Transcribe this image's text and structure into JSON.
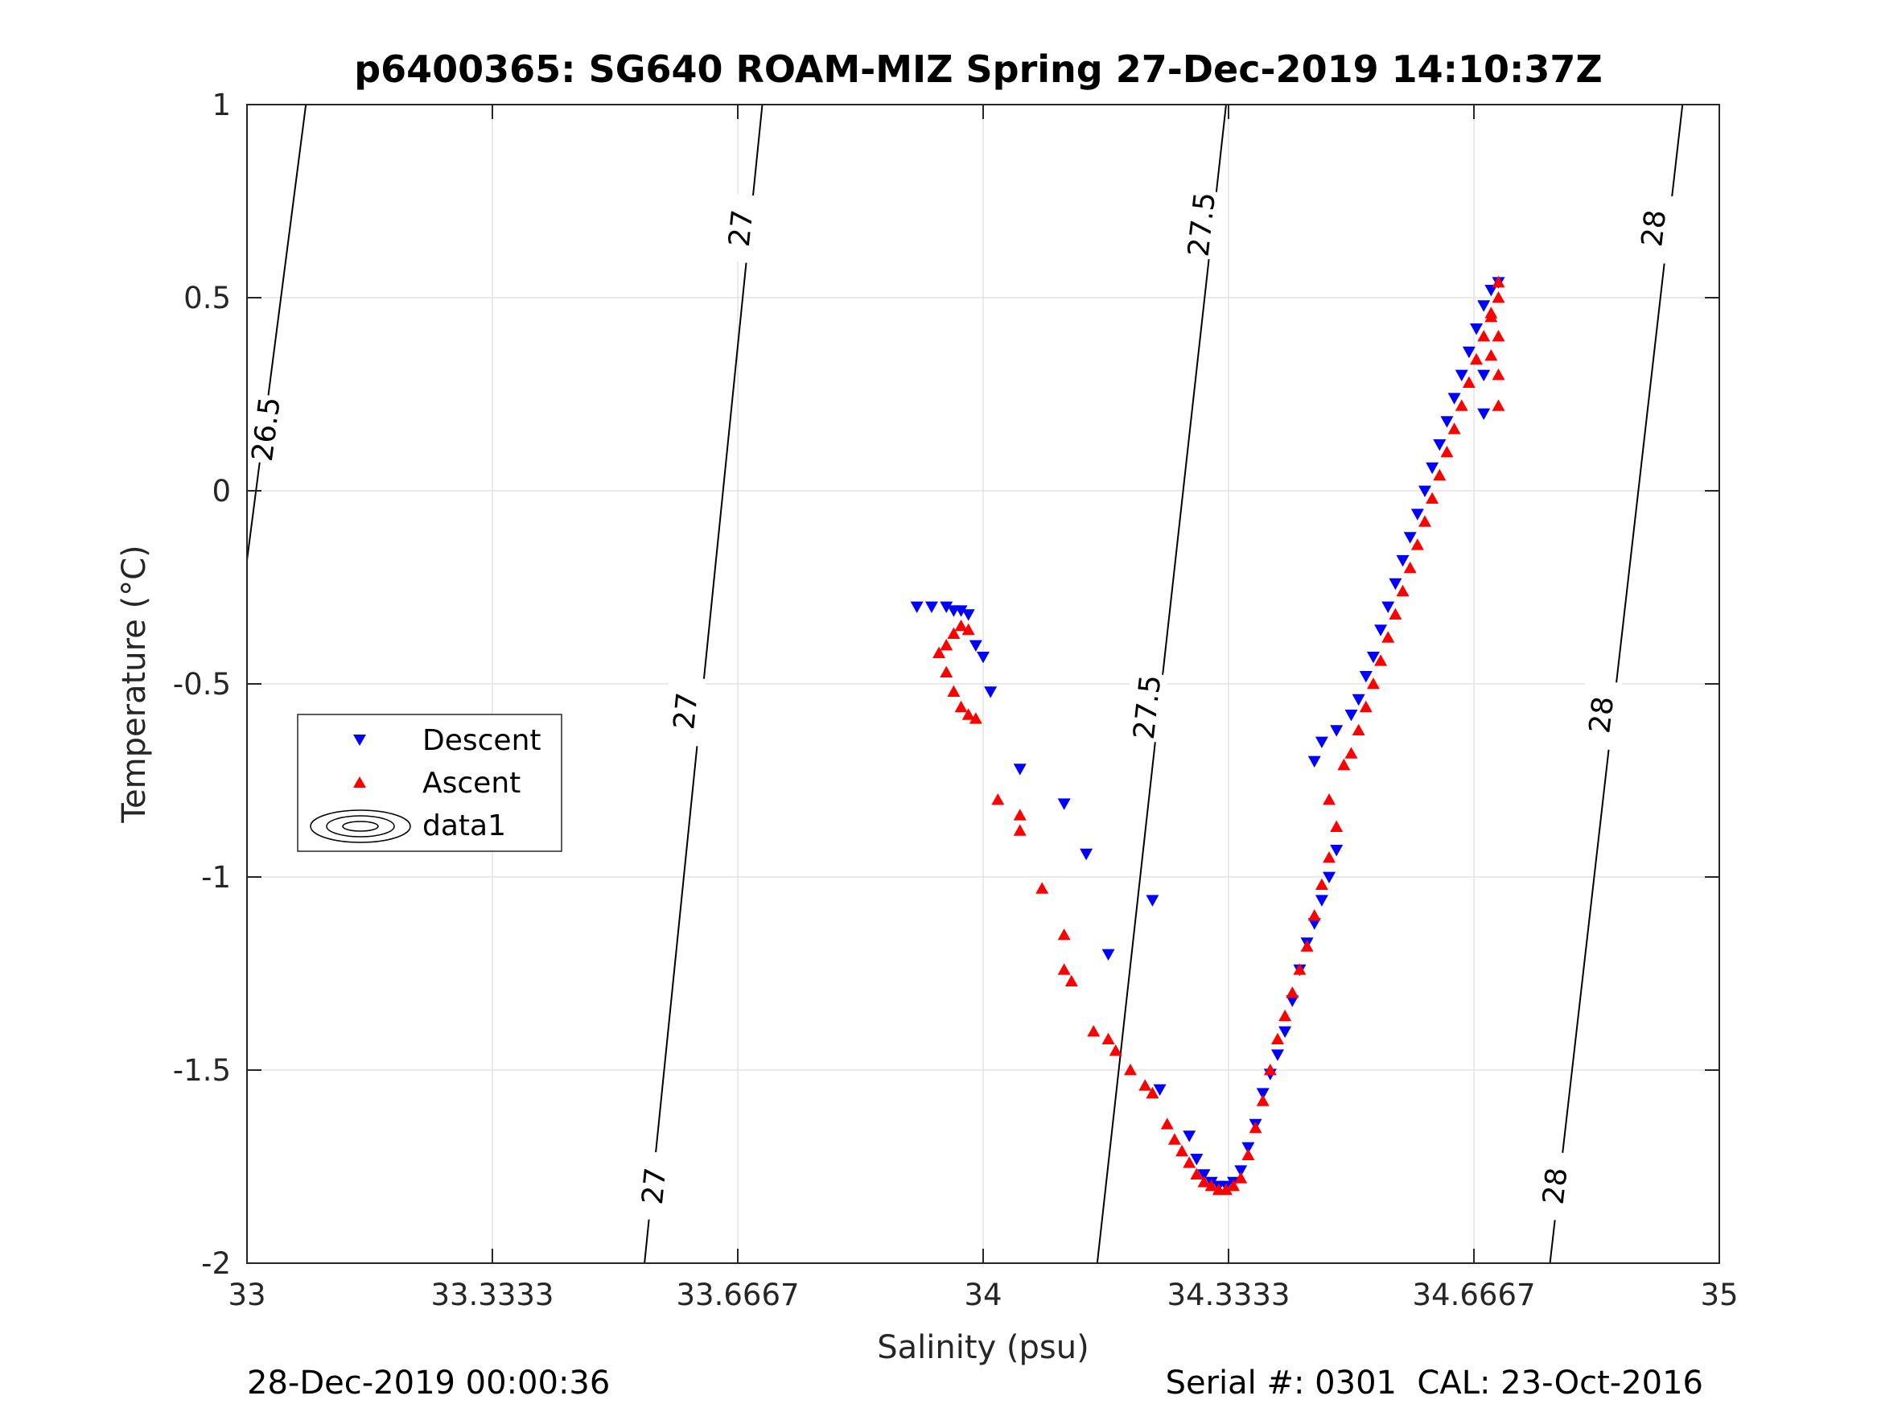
{
  "chart_data": {
    "type": "scatter",
    "title": "p6400365: SG640 ROAM-MIZ Spring 27-Dec-2019 14:10:37Z",
    "xlabel": "Salinity (psu)",
    "ylabel": "Temperature (°C)",
    "xlim": [
      33,
      35
    ],
    "ylim": [
      -2,
      1
    ],
    "x_ticks": [
      33,
      33.3333,
      33.6667,
      34,
      34.3333,
      34.6667,
      35
    ],
    "x_tick_labels": [
      "33",
      "33.3333",
      "33.6667",
      "34",
      "34.3333",
      "34.6667",
      "35"
    ],
    "y_ticks": [
      -2,
      -1.5,
      -1,
      -0.5,
      0,
      0.5,
      1
    ],
    "y_tick_labels": [
      "-2",
      "-1.5",
      "-1",
      "-0.5",
      "0",
      "0.5",
      "1"
    ],
    "grid": true,
    "legend": "left",
    "series": [
      {
        "name": "Descent",
        "marker": "triangle-down",
        "color": "#0000ff",
        "points": [
          [
            33.91,
            -0.3
          ],
          [
            33.93,
            -0.3
          ],
          [
            33.95,
            -0.3
          ],
          [
            33.96,
            -0.31
          ],
          [
            33.97,
            -0.31
          ],
          [
            33.98,
            -0.32
          ],
          [
            33.99,
            -0.4
          ],
          [
            34.0,
            -0.43
          ],
          [
            34.01,
            -0.52
          ],
          [
            34.05,
            -0.72
          ],
          [
            34.11,
            -0.81
          ],
          [
            34.14,
            -0.94
          ],
          [
            34.17,
            -1.2
          ],
          [
            34.23,
            -1.06
          ],
          [
            34.24,
            -1.55
          ],
          [
            34.28,
            -1.67
          ],
          [
            34.29,
            -1.73
          ],
          [
            34.3,
            -1.77
          ],
          [
            34.31,
            -1.79
          ],
          [
            34.32,
            -1.8
          ],
          [
            34.33,
            -1.8
          ],
          [
            34.34,
            -1.79
          ],
          [
            34.35,
            -1.76
          ],
          [
            34.36,
            -1.7
          ],
          [
            34.37,
            -1.64
          ],
          [
            34.38,
            -1.56
          ],
          [
            34.39,
            -1.51
          ],
          [
            34.4,
            -1.46
          ],
          [
            34.41,
            -1.4
          ],
          [
            34.42,
            -1.32
          ],
          [
            34.43,
            -1.24
          ],
          [
            34.44,
            -1.17
          ],
          [
            34.45,
            -1.12
          ],
          [
            34.46,
            -1.06
          ],
          [
            34.47,
            -1.0
          ],
          [
            34.48,
            -0.93
          ],
          [
            34.45,
            -0.7
          ],
          [
            34.46,
            -0.65
          ],
          [
            34.48,
            -0.62
          ],
          [
            34.5,
            -0.58
          ],
          [
            34.51,
            -0.54
          ],
          [
            34.52,
            -0.48
          ],
          [
            34.53,
            -0.43
          ],
          [
            34.54,
            -0.36
          ],
          [
            34.55,
            -0.3
          ],
          [
            34.56,
            -0.24
          ],
          [
            34.57,
            -0.18
          ],
          [
            34.58,
            -0.12
          ],
          [
            34.59,
            -0.06
          ],
          [
            34.6,
            0.0
          ],
          [
            34.61,
            0.06
          ],
          [
            34.62,
            0.12
          ],
          [
            34.63,
            0.18
          ],
          [
            34.64,
            0.24
          ],
          [
            34.65,
            0.3
          ],
          [
            34.66,
            0.36
          ],
          [
            34.67,
            0.42
          ],
          [
            34.68,
            0.48
          ],
          [
            34.69,
            0.52
          ],
          [
            34.7,
            0.54
          ],
          [
            34.68,
            0.3
          ],
          [
            34.68,
            0.2
          ]
        ]
      },
      {
        "name": "Ascent",
        "marker": "triangle-up",
        "color": "#ff0000",
        "points": [
          [
            33.94,
            -0.42
          ],
          [
            33.95,
            -0.4
          ],
          [
            33.96,
            -0.37
          ],
          [
            33.97,
            -0.35
          ],
          [
            33.98,
            -0.36
          ],
          [
            33.95,
            -0.47
          ],
          [
            33.96,
            -0.52
          ],
          [
            33.97,
            -0.56
          ],
          [
            33.98,
            -0.58
          ],
          [
            33.99,
            -0.59
          ],
          [
            34.02,
            -0.8
          ],
          [
            34.05,
            -0.84
          ],
          [
            34.05,
            -0.88
          ],
          [
            34.08,
            -1.03
          ],
          [
            34.11,
            -1.15
          ],
          [
            34.11,
            -1.24
          ],
          [
            34.12,
            -1.27
          ],
          [
            34.15,
            -1.4
          ],
          [
            34.17,
            -1.42
          ],
          [
            34.18,
            -1.45
          ],
          [
            34.2,
            -1.5
          ],
          [
            34.22,
            -1.54
          ],
          [
            34.23,
            -1.56
          ],
          [
            34.25,
            -1.64
          ],
          [
            34.26,
            -1.68
          ],
          [
            34.27,
            -1.71
          ],
          [
            34.28,
            -1.74
          ],
          [
            34.29,
            -1.77
          ],
          [
            34.3,
            -1.79
          ],
          [
            34.31,
            -1.8
          ],
          [
            34.32,
            -1.81
          ],
          [
            34.33,
            -1.81
          ],
          [
            34.34,
            -1.8
          ],
          [
            34.35,
            -1.78
          ],
          [
            34.36,
            -1.72
          ],
          [
            34.37,
            -1.65
          ],
          [
            34.38,
            -1.58
          ],
          [
            34.39,
            -1.5
          ],
          [
            34.4,
            -1.42
          ],
          [
            34.41,
            -1.36
          ],
          [
            34.42,
            -1.3
          ],
          [
            34.43,
            -1.24
          ],
          [
            34.44,
            -1.18
          ],
          [
            34.45,
            -1.1
          ],
          [
            34.46,
            -1.02
          ],
          [
            34.47,
            -0.95
          ],
          [
            34.48,
            -0.87
          ],
          [
            34.47,
            -0.8
          ],
          [
            34.49,
            -0.71
          ],
          [
            34.5,
            -0.68
          ],
          [
            34.51,
            -0.62
          ],
          [
            34.52,
            -0.56
          ],
          [
            34.53,
            -0.5
          ],
          [
            34.54,
            -0.44
          ],
          [
            34.55,
            -0.38
          ],
          [
            34.56,
            -0.32
          ],
          [
            34.57,
            -0.26
          ],
          [
            34.58,
            -0.2
          ],
          [
            34.59,
            -0.14
          ],
          [
            34.6,
            -0.08
          ],
          [
            34.61,
            -0.02
          ],
          [
            34.62,
            0.04
          ],
          [
            34.63,
            0.1
          ],
          [
            34.64,
            0.16
          ],
          [
            34.65,
            0.22
          ],
          [
            34.66,
            0.28
          ],
          [
            34.67,
            0.34
          ],
          [
            34.68,
            0.4
          ],
          [
            34.69,
            0.46
          ],
          [
            34.7,
            0.5
          ],
          [
            34.7,
            0.54
          ],
          [
            34.7,
            0.4
          ],
          [
            34.7,
            0.3
          ],
          [
            34.7,
            0.22
          ],
          [
            34.69,
            0.45
          ],
          [
            34.69,
            0.35
          ]
        ]
      }
    ],
    "contours": [
      {
        "level": "26.5",
        "points": [
          [
            33.0,
            -0.18
          ],
          [
            33.08,
            1.0
          ]
        ],
        "labels": [
          {
            "x": 33.025,
            "y": 0.16
          }
        ]
      },
      {
        "level": "27",
        "points": [
          [
            33.54,
            -2.0
          ],
          [
            33.7,
            1.0
          ]
        ],
        "labels": [
          {
            "x": 33.552,
            "y": -1.8
          },
          {
            "x": 33.595,
            "y": -0.57
          },
          {
            "x": 33.67,
            "y": 0.68
          }
        ]
      },
      {
        "level": "27.5",
        "points": [
          [
            34.155,
            -2.0
          ],
          [
            34.33,
            1.0
          ]
        ],
        "labels": [
          {
            "x": 34.222,
            "y": -0.56
          },
          {
            "x": 34.296,
            "y": 0.69
          }
        ]
      },
      {
        "level": "28",
        "points": [
          [
            34.77,
            -2.0
          ],
          [
            34.95,
            1.0
          ]
        ],
        "labels": [
          {
            "x": 34.776,
            "y": -1.8
          },
          {
            "x": 34.839,
            "y": -0.58
          },
          {
            "x": 34.91,
            "y": 0.68
          }
        ]
      }
    ],
    "legend_entries": [
      "Descent",
      "Ascent",
      "data1"
    ]
  },
  "footer": {
    "left": "28-Dec-2019 00:00:36",
    "right": "Serial #: 0301  CAL: 23-Oct-2016"
  }
}
